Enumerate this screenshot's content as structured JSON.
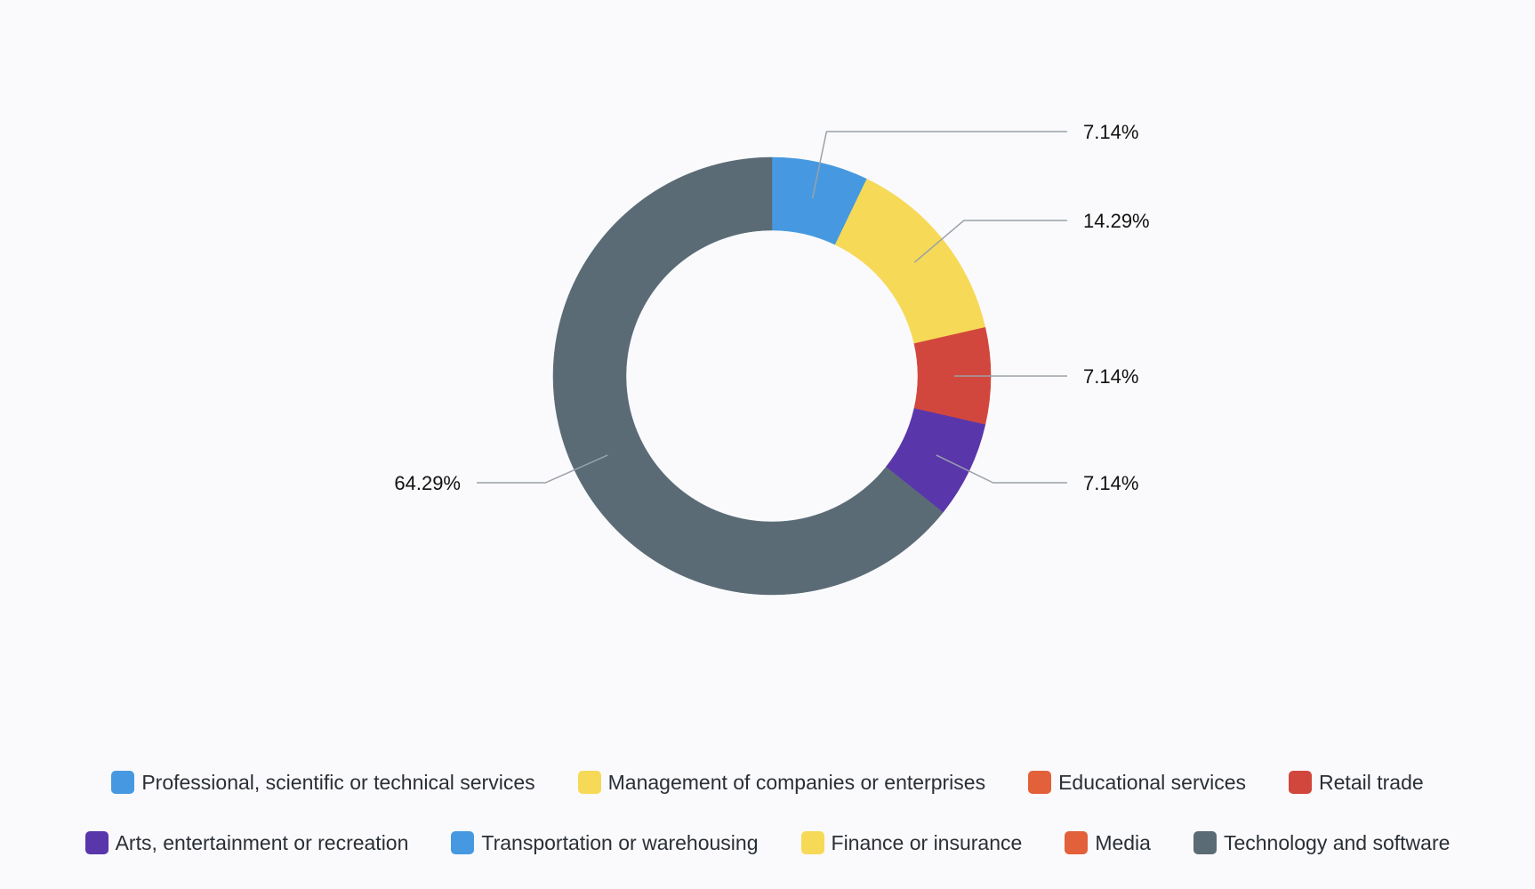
{
  "chart_data": {
    "type": "pie",
    "variant": "donut",
    "slices": [
      {
        "label": "Professional, scientific or technical services",
        "value": 7.14,
        "value_label": "7.14%",
        "color": "#4699e0"
      },
      {
        "label": "Management of companies or enterprises",
        "value": 14.29,
        "value_label": "14.29%",
        "color": "#f6d957"
      },
      {
        "label": "Retail trade",
        "value": 7.14,
        "value_label": "7.14%",
        "color": "#d2473d"
      },
      {
        "label": "Arts, entertainment or recreation",
        "value": 7.14,
        "value_label": "7.14%",
        "color": "#5a36ab"
      },
      {
        "label": "Technology and software",
        "value": 64.29,
        "value_label": "64.29%",
        "color": "#5a6b76"
      }
    ],
    "legend": {
      "placement": "bottom",
      "rows": [
        [
          {
            "label": "Professional, scientific or technical services",
            "color": "#4699e0"
          },
          {
            "label": "Management of companies or enterprises",
            "color": "#f6d957"
          },
          {
            "label": "Educational services",
            "color": "#e2603a"
          },
          {
            "label": "Retail trade",
            "color": "#d2473d"
          }
        ],
        [
          {
            "label": "Arts, entertainment or recreation",
            "color": "#5a36ab"
          },
          {
            "label": "Transportation or warehousing",
            "color": "#4699e0"
          },
          {
            "label": "Finance or insurance",
            "color": "#f6d957"
          },
          {
            "label": "Media",
            "color": "#e2603a"
          },
          {
            "label": "Technology and software",
            "color": "#5a6b76"
          }
        ]
      ]
    }
  }
}
